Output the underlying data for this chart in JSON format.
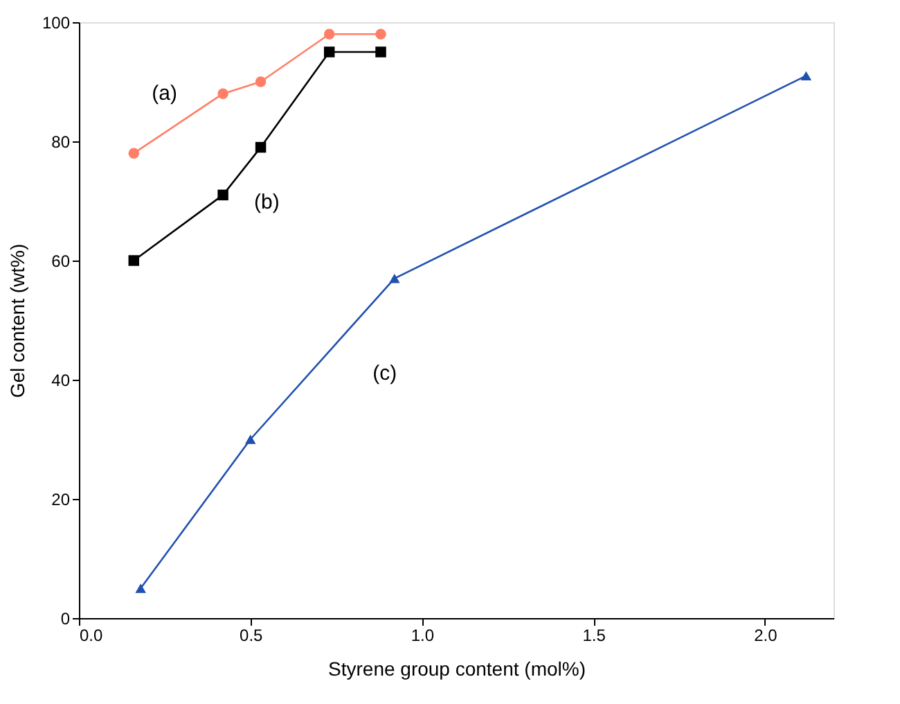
{
  "chart_data": {
    "type": "line",
    "xlabel": "Styrene group content (mol%)",
    "ylabel": "Gel content (wt%)",
    "xlim": [
      0,
      2.2
    ],
    "xticks": [
      {
        "value": 0,
        "label": "0.0"
      },
      {
        "value": 0.5,
        "label": "0.5"
      },
      {
        "value": 1,
        "label": "1.0"
      },
      {
        "value": 1.5,
        "label": "1.5"
      },
      {
        "value": 2,
        "label": "2.0"
      }
    ],
    "ylim": [
      0,
      100
    ],
    "yticks": [
      0,
      20,
      40,
      60,
      80,
      100
    ],
    "grid": false,
    "line_style": "solid",
    "series": [
      {
        "name": "(a)",
        "color": "#ff7f66",
        "marker": "circle",
        "x": [
          0.16,
          0.42,
          0.53,
          0.73,
          0.88
        ],
        "values": [
          78,
          88,
          90,
          98,
          98
        ]
      },
      {
        "name": "(b)",
        "color": "#000000",
        "marker": "square",
        "x": [
          0.16,
          0.42,
          0.53,
          0.73,
          0.88
        ],
        "values": [
          60,
          71,
          79,
          95,
          95
        ]
      },
      {
        "name": "(c)",
        "color": "#2050b0",
        "marker": "triangle",
        "x": [
          0.18,
          0.5,
          0.92,
          2.12
        ],
        "values": [
          5,
          30,
          57,
          91
        ]
      }
    ]
  }
}
